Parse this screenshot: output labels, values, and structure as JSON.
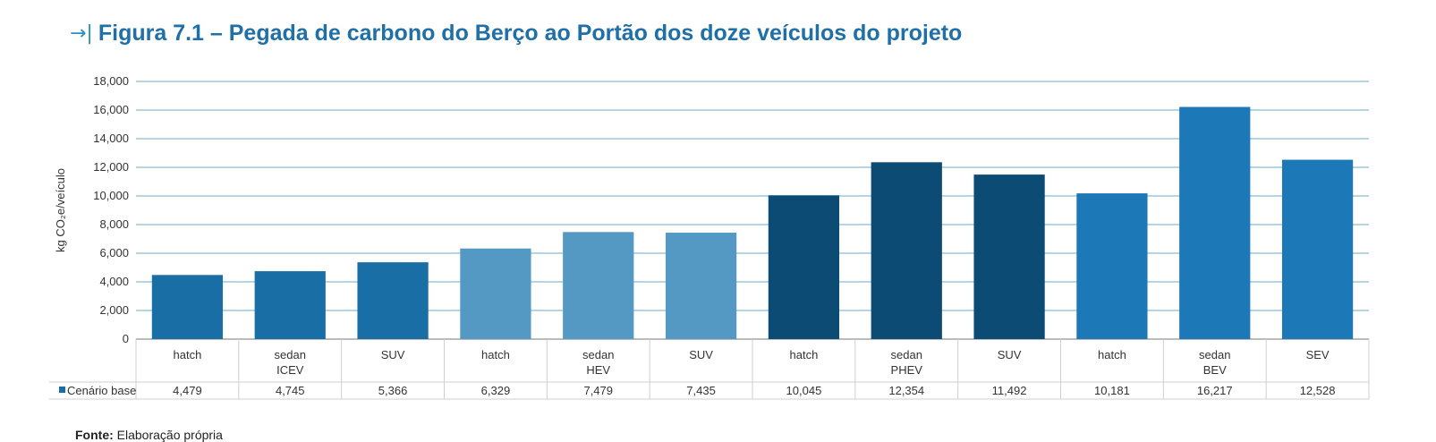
{
  "figure_title": "Figura 7.1 – Pegada de carbono do Berço ao Portão dos doze veículos do projeto",
  "source_label": "Fonte:",
  "source_text": "Elaboração própria",
  "chart_data": {
    "type": "bar",
    "ylabel": "kg CO₂e/veículo",
    "ylim": [
      0,
      18000
    ],
    "yticks": [
      0,
      2000,
      4000,
      6000,
      8000,
      10000,
      12000,
      14000,
      16000,
      18000
    ],
    "ytick_labels": [
      "0",
      "2,000",
      "4,000",
      "6,000",
      "8,000",
      "10,000",
      "12,000",
      "14,000",
      "16,000",
      "18,000"
    ],
    "grid": true,
    "legend": "bottom-left-table",
    "series": [
      {
        "name": "Cenário base",
        "values": [
          4479,
          4745,
          5366,
          6329,
          7479,
          7435,
          10045,
          12354,
          11492,
          10181,
          16217,
          12528
        ]
      }
    ],
    "categories": [
      "hatch",
      "sedan",
      "SUV",
      "hatch",
      "sedan",
      "SUV",
      "hatch",
      "sedan",
      "SUV",
      "hatch",
      "sedan",
      "SEV"
    ],
    "groups": [
      {
        "label": "ICEV",
        "color": "#1a6ea6",
        "indices": [
          0,
          1,
          2
        ]
      },
      {
        "label": "HEV",
        "color": "#5499c3",
        "indices": [
          3,
          4,
          5
        ]
      },
      {
        "label": "PHEV",
        "color": "#0c4b73",
        "indices": [
          6,
          7,
          8
        ]
      },
      {
        "label": "BEV",
        "color": "#1d78b8",
        "indices": [
          9,
          10,
          11
        ]
      }
    ],
    "value_labels": [
      "4,479",
      "4,745",
      "5,366",
      "6,329",
      "7,479",
      "7,435",
      "10,045",
      "12,354",
      "11,492",
      "10,181",
      "16,217",
      "12,528"
    ],
    "legend_color": "#1a6ea6"
  }
}
